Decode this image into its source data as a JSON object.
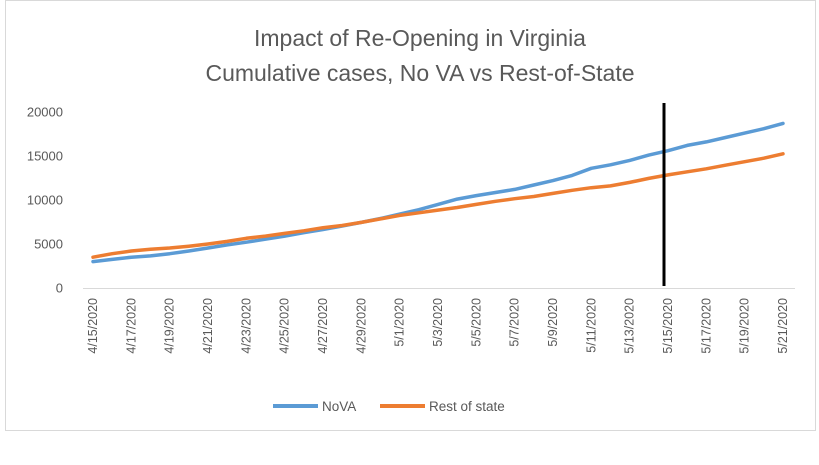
{
  "chart_data": {
    "type": "line",
    "title": "Impact of Re-Opening in Virginia",
    "subtitle": "Cumulative cases, No VA vs Rest-of-State",
    "xlabel": "",
    "ylabel": "",
    "ylim": [
      0,
      20000
    ],
    "yticks": [
      "20000",
      "15000",
      "10000",
      "5000",
      "0"
    ],
    "ytick_values": [
      20000,
      15000,
      10000,
      5000,
      0
    ],
    "grid": false,
    "legend_position": "bottom",
    "x": [
      "4/15/2020",
      "4/16/2020",
      "4/17/2020",
      "4/18/2020",
      "4/19/2020",
      "4/20/2020",
      "4/21/2020",
      "4/22/2020",
      "4/23/2020",
      "4/24/2020",
      "4/25/2020",
      "4/26/2020",
      "4/27/2020",
      "4/28/2020",
      "4/29/2020",
      "4/30/2020",
      "5/1/2020",
      "5/2/2020",
      "5/3/2020",
      "5/4/2020",
      "5/5/2020",
      "5/6/2020",
      "5/7/2020",
      "5/8/2020",
      "5/9/2020",
      "5/10/2020",
      "5/11/2020",
      "5/12/2020",
      "5/13/2020",
      "5/14/2020",
      "5/15/2020",
      "5/16/2020",
      "5/17/2020",
      "5/18/2020",
      "5/19/2020",
      "5/20/2020",
      "5/21/2020"
    ],
    "x_tick_labels": [
      "4/15/2020",
      "4/17/2020",
      "4/19/2020",
      "4/21/2020",
      "4/23/2020",
      "4/25/2020",
      "4/27/2020",
      "4/29/2020",
      "5/1/2020",
      "5/3/2020",
      "5/5/2020",
      "5/7/2020",
      "5/9/2020",
      "5/11/2020",
      "5/13/2020",
      "5/15/2020",
      "5/17/2020",
      "5/19/2020",
      "5/21/2020"
    ],
    "series": [
      {
        "name": "NoVA",
        "color": "#5B9BD5",
        "values": [
          3000,
          3250,
          3500,
          3650,
          3900,
          4200,
          4550,
          4900,
          5200,
          5550,
          5900,
          6300,
          6650,
          7050,
          7450,
          7900,
          8400,
          8900,
          9500,
          10100,
          10500,
          10850,
          11200,
          11700,
          12200,
          12800,
          13600,
          14000,
          14500,
          15100,
          15600,
          16200,
          16600,
          17100,
          17600,
          18100,
          18700
        ]
      },
      {
        "name": "Rest of state",
        "color": "#ED7D31",
        "values": [
          3500,
          3900,
          4200,
          4400,
          4550,
          4750,
          5000,
          5300,
          5650,
          5900,
          6200,
          6500,
          6850,
          7100,
          7450,
          7850,
          8250,
          8550,
          8850,
          9150,
          9500,
          9850,
          10150,
          10400,
          10750,
          11100,
          11400,
          11600,
          12000,
          12450,
          12850,
          13200,
          13550,
          13950,
          14350,
          14750,
          15250
        ]
      }
    ],
    "annotations": [
      {
        "type": "vertical-line",
        "x": "5/15/2020",
        "color": "#000000"
      }
    ]
  }
}
